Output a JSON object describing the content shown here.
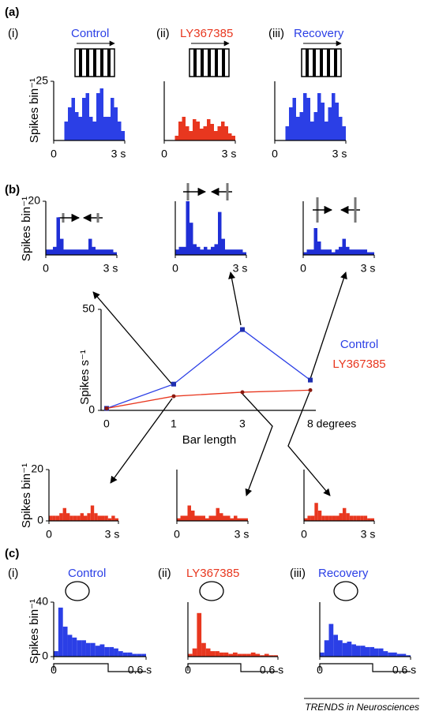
{
  "panels": [
    "(a)",
    "(b)",
    "(c)"
  ],
  "source": "TRENDS in Neurosciences",
  "chart_data": [
    {
      "type": "histogram",
      "label": "(i)",
      "title": "Control",
      "ylabel": "Spikes bin⁻¹",
      "color": "#2b3fe6",
      "bins": [
        0,
        0.15,
        0.3,
        0.45,
        0.6,
        0.75,
        0.9,
        1.05,
        1.2,
        1.35,
        1.5,
        1.65,
        1.8,
        1.95,
        2.1,
        2.25,
        2.4,
        2.55,
        2.7,
        2.85,
        3
      ],
      "values": [
        0,
        0,
        0,
        8,
        14,
        18,
        12,
        10,
        18,
        20,
        10,
        8,
        20,
        22,
        10,
        10,
        18,
        14,
        8,
        4
      ],
      "xlim": [
        0,
        3
      ],
      "xticks": [
        0,
        {
          "value": 3,
          "label": "3 s"
        }
      ],
      "ylim": [
        0,
        25
      ],
      "yticks": [
        25
      ]
    },
    {
      "type": "histogram",
      "label": "(ii)",
      "title": "LY367385",
      "color": "#e8371f",
      "bins": [
        0,
        0.15,
        0.3,
        0.45,
        0.6,
        0.75,
        0.9,
        1.05,
        1.2,
        1.35,
        1.5,
        1.65,
        1.8,
        1.95,
        2.1,
        2.25,
        2.4,
        2.55,
        2.7,
        2.85,
        3
      ],
      "values": [
        0,
        0,
        0,
        2,
        8,
        10,
        6,
        4,
        9,
        8,
        5,
        6,
        9,
        7,
        4,
        6,
        8,
        6,
        3,
        2
      ],
      "xlim": [
        0,
        3
      ],
      "xticks": [
        0,
        {
          "value": 3,
          "label": "3 s"
        }
      ],
      "ylim": [
        0,
        25
      ],
      "yticks": []
    },
    {
      "type": "histogram",
      "label": "(iii)",
      "title": "Recovery",
      "color": "#2b3fe6",
      "bins": [
        0,
        0.15,
        0.3,
        0.45,
        0.6,
        0.75,
        0.9,
        1.05,
        1.2,
        1.35,
        1.5,
        1.65,
        1.8,
        1.95,
        2.1,
        2.25,
        2.4,
        2.55,
        2.7,
        2.85,
        3
      ],
      "values": [
        0,
        0,
        0,
        6,
        14,
        18,
        10,
        12,
        20,
        18,
        8,
        12,
        20,
        16,
        8,
        14,
        20,
        16,
        10,
        6
      ],
      "xlim": [
        0,
        3
      ],
      "xticks": [
        0,
        {
          "value": 3,
          "label": "3 s"
        }
      ],
      "ylim": [
        0,
        25
      ],
      "yticks": []
    },
    {
      "type": "histogram",
      "ylabel": "Spikes bin⁻¹",
      "color": "#1f2fd6",
      "bins": [
        0,
        0.15,
        0.3,
        0.45,
        0.6,
        0.75,
        0.9,
        1.05,
        1.2,
        1.35,
        1.5,
        1.65,
        1.8,
        1.95,
        2.1,
        2.25,
        2.4,
        2.55,
        2.7,
        2.85,
        3
      ],
      "values": [
        2,
        2,
        3,
        14,
        6,
        2,
        2,
        2,
        2,
        2,
        2,
        2,
        6,
        3,
        2,
        2,
        2,
        2,
        2,
        1
      ],
      "xlim": [
        0,
        3
      ],
      "xticks": [
        0,
        {
          "value": 3,
          "label": "3 s"
        }
      ],
      "ylim": [
        0,
        20
      ],
      "yticks": [
        20
      ]
    },
    {
      "type": "histogram",
      "color": "#1f2fd6",
      "bins": [
        0,
        0.15,
        0.3,
        0.45,
        0.6,
        0.75,
        0.9,
        1.05,
        1.2,
        1.35,
        1.5,
        1.65,
        1.8,
        1.95,
        2.1,
        2.25,
        2.4,
        2.55,
        2.7,
        2.85,
        3
      ],
      "values": [
        2,
        3,
        3,
        20,
        12,
        4,
        3,
        2,
        3,
        2,
        3,
        4,
        16,
        6,
        2,
        2,
        2,
        2,
        2,
        1
      ],
      "xlim": [
        0,
        3
      ],
      "xticks": [
        0,
        {
          "value": 3,
          "label": "3 s"
        }
      ],
      "ylim": [
        0,
        20
      ],
      "yticks": []
    },
    {
      "type": "histogram",
      "color": "#1f2fd6",
      "bins": [
        0,
        0.15,
        0.3,
        0.45,
        0.6,
        0.75,
        0.9,
        1.05,
        1.2,
        1.35,
        1.5,
        1.65,
        1.8,
        1.95,
        2.1,
        2.25,
        2.4,
        2.55,
        2.7,
        2.85,
        3
      ],
      "values": [
        1,
        2,
        2,
        10,
        5,
        2,
        2,
        2,
        1,
        2,
        3,
        6,
        3,
        2,
        2,
        2,
        2,
        2,
        1,
        1
      ],
      "xlim": [
        0,
        3
      ],
      "xticks": [
        0,
        {
          "value": 3,
          "label": "3 s"
        }
      ],
      "ylim": [
        0,
        20
      ],
      "yticks": []
    },
    {
      "type": "line",
      "xlabel": "Bar length",
      "ylabel": "Spikes s⁻¹",
      "categories": [
        "0",
        "1",
        "3",
        "8 degrees"
      ],
      "ylim": [
        0,
        50
      ],
      "yticks": [
        0,
        50
      ],
      "series": [
        {
          "name": "Control",
          "color": "#2b3fe6",
          "values": [
            1,
            13,
            40,
            15
          ]
        },
        {
          "name": "LY367385",
          "color": "#e8371f",
          "values": [
            1,
            7,
            9,
            10
          ]
        }
      ]
    },
    {
      "type": "histogram",
      "ylabel": "Spikes bin⁻¹",
      "color": "#e8371f",
      "bins": [
        0,
        0.15,
        0.3,
        0.45,
        0.6,
        0.75,
        0.9,
        1.05,
        1.2,
        1.35,
        1.5,
        1.65,
        1.8,
        1.95,
        2.1,
        2.25,
        2.4,
        2.55,
        2.7,
        2.85,
        3
      ],
      "values": [
        2,
        2,
        2,
        3,
        5,
        3,
        2,
        2,
        2,
        3,
        2,
        3,
        6,
        3,
        2,
        2,
        2,
        1,
        2,
        1
      ],
      "xlim": [
        0,
        3
      ],
      "xticks": [
        0,
        {
          "value": 3,
          "label": "3 s"
        }
      ],
      "ylim": [
        0,
        20
      ],
      "yticks": [
        0,
        20
      ]
    },
    {
      "type": "histogram",
      "color": "#e8371f",
      "bins": [
        0,
        0.15,
        0.3,
        0.45,
        0.6,
        0.75,
        0.9,
        1.05,
        1.2,
        1.35,
        1.5,
        1.65,
        1.8,
        1.95,
        2.1,
        2.25,
        2.4,
        2.55,
        2.7,
        2.85,
        3
      ],
      "values": [
        1,
        2,
        2,
        6,
        4,
        2,
        2,
        2,
        1,
        2,
        2,
        5,
        3,
        2,
        2,
        1,
        2,
        1,
        1,
        1
      ],
      "xlim": [
        0,
        3
      ],
      "xticks": [
        0,
        {
          "value": 3,
          "label": "3 s"
        }
      ],
      "ylim": [
        0,
        20
      ],
      "yticks": []
    },
    {
      "type": "histogram",
      "color": "#e8371f",
      "bins": [
        0,
        0.15,
        0.3,
        0.45,
        0.6,
        0.75,
        0.9,
        1.05,
        1.2,
        1.35,
        1.5,
        1.65,
        1.8,
        1.95,
        2.1,
        2.25,
        2.4,
        2.55,
        2.7,
        2.85,
        3
      ],
      "values": [
        1,
        2,
        2,
        7,
        4,
        2,
        2,
        2,
        2,
        2,
        3,
        5,
        3,
        2,
        2,
        2,
        2,
        2,
        1,
        1
      ],
      "xlim": [
        0,
        3
      ],
      "xticks": [
        0,
        {
          "value": 3,
          "label": "3 s"
        }
      ],
      "ylim": [
        0,
        20
      ],
      "yticks": []
    },
    {
      "type": "histogram",
      "label": "(i)",
      "title": "Control",
      "ylabel": "Spikes bin⁻¹",
      "color": "#2b3fe6",
      "bins": [
        0,
        0.03,
        0.06,
        0.09,
        0.12,
        0.15,
        0.18,
        0.21,
        0.24,
        0.27,
        0.3,
        0.33,
        0.36,
        0.39,
        0.42,
        0.45,
        0.48,
        0.51,
        0.54,
        0.57,
        0.6
      ],
      "values": [
        4,
        36,
        22,
        16,
        14,
        12,
        12,
        10,
        10,
        8,
        9,
        7,
        7,
        6,
        4,
        3,
        3,
        2,
        2,
        2
      ],
      "xlim": [
        0,
        0.6
      ],
      "xticks": [
        0,
        {
          "value": 0.6,
          "label": "0.6 s"
        }
      ],
      "ylim": [
        0,
        40
      ],
      "yticks": [
        0,
        40
      ]
    },
    {
      "type": "histogram",
      "label": "(ii)",
      "title": "LY367385",
      "color": "#e8371f",
      "bins": [
        0,
        0.03,
        0.06,
        0.09,
        0.12,
        0.15,
        0.18,
        0.21,
        0.24,
        0.27,
        0.3,
        0.33,
        0.36,
        0.39,
        0.42,
        0.45,
        0.48,
        0.51,
        0.54,
        0.57,
        0.6
      ],
      "values": [
        2,
        6,
        32,
        10,
        6,
        4,
        4,
        3,
        3,
        2,
        3,
        2,
        2,
        2,
        3,
        2,
        1,
        2,
        1,
        1
      ],
      "xlim": [
        0,
        0.6
      ],
      "xticks": [
        0,
        {
          "value": 0.6,
          "label": "0.6 s"
        }
      ],
      "ylim": [
        0,
        40
      ],
      "yticks": []
    },
    {
      "type": "histogram",
      "label": "(iii)",
      "title": "Recovery",
      "color": "#2b3fe6",
      "bins": [
        0,
        0.03,
        0.06,
        0.09,
        0.12,
        0.15,
        0.18,
        0.21,
        0.24,
        0.27,
        0.3,
        0.33,
        0.36,
        0.39,
        0.42,
        0.45,
        0.48,
        0.51,
        0.54,
        0.57,
        0.6
      ],
      "values": [
        3,
        12,
        24,
        16,
        12,
        10,
        11,
        9,
        8,
        8,
        7,
        7,
        6,
        6,
        4,
        3,
        3,
        2,
        2,
        1
      ],
      "xlim": [
        0,
        0.6
      ],
      "xticks": [
        0,
        {
          "value": 0.6,
          "label": "0.6 s"
        }
      ],
      "ylim": [
        0,
        40
      ],
      "yticks": []
    }
  ]
}
